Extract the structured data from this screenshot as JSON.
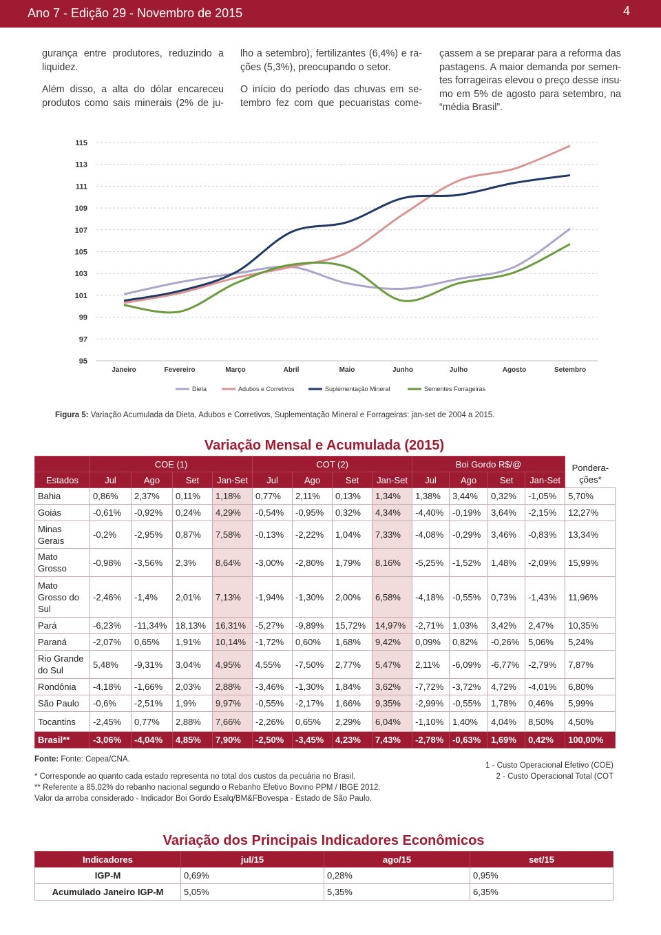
{
  "header": {
    "title": "Ano 7 - Edição 29 - Novembro de 2015",
    "page": "4"
  },
  "columns": [
    [
      [
        "gurança entre produtores, reduzindo a",
        "liquidez."
      ],
      [
        "Além disso, a alta do dólar encareceu",
        "produtos como sais minerais (2% de ju-"
      ]
    ],
    [
      [
        "lho a setembro), fertilizantes (6,4%) e ra-",
        "ções (5,3%), preocupando o setor."
      ],
      [
        "O início do período das chuvas em se-",
        "tembro fez com que pecuaristas come-"
      ]
    ],
    [
      [
        "çassem a se preparar para a reforma das",
        "pastagens. A maior demanda por semen-",
        "tes forrageiras elevou o preço desse insu-",
        "mo em 5% de agosto para setembro, na",
        "“média Brasil”."
      ]
    ]
  ],
  "chart_data": {
    "type": "line",
    "categories": [
      "Janeiro",
      "Fevereiro",
      "Março",
      "Abril",
      "Maio",
      "Junho",
      "Julho",
      "Agosto",
      "Setembro"
    ],
    "series": [
      {
        "name": "Dieta",
        "color": "#a9a5cc",
        "values": [
          101.1,
          102.2,
          103.0,
          103.6,
          102.1,
          101.6,
          102.5,
          103.6,
          107.1
        ]
      },
      {
        "name": "Adubos e Corretivos",
        "color": "#d99594",
        "values": [
          100.3,
          101.2,
          102.6,
          103.6,
          104.9,
          108.4,
          111.5,
          112.6,
          114.7
        ]
      },
      {
        "name": "Suplementação Mineral",
        "color": "#1f3864",
        "values": [
          100.5,
          101.4,
          103.1,
          106.8,
          107.7,
          109.9,
          110.2,
          111.3,
          112.0
        ]
      },
      {
        "name": "Sementes Forrageiras",
        "color": "#6b9a3f",
        "values": [
          100.1,
          99.5,
          102.1,
          103.8,
          103.6,
          100.5,
          102.1,
          103.1,
          105.7
        ]
      }
    ],
    "ylim": [
      95,
      115
    ],
    "yticks": [
      95,
      97,
      99,
      101,
      103,
      105,
      107,
      109,
      111,
      113,
      115
    ],
    "grid": true,
    "legend": "bottom"
  },
  "figure_caption": {
    "label": "Figura 5:",
    "text": "Variação Acumulada da Dieta, Adubos e Corretivos, Suplementação Mineral e Forrageiras: jan-set de 2004 a 2015."
  },
  "table": {
    "title": "Variação Mensal e Acumulada (2015)",
    "groups": [
      "COE (1)",
      "COT (2)",
      "Boi Gordo R$/@"
    ],
    "estados_label": "Estados",
    "periods": [
      "Jul",
      "Ago",
      "Set",
      "Jan-Set",
      "Jul",
      "Ago",
      "Set",
      "Jan-Set",
      "Jul",
      "Ago",
      "Set",
      "Jan-Set"
    ],
    "weight_label": [
      "Pondera-",
      "ções*"
    ],
    "rows": [
      [
        "Bahia",
        "0,86%",
        "2,37%",
        "0,11%",
        "1,18%",
        "0,77%",
        "2,11%",
        "0,13%",
        "1,34%",
        "1,38%",
        "3,44%",
        "0,32%",
        "-1,05%",
        "5,70%"
      ],
      [
        "Goiás",
        "-0,61%",
        "-0,92%",
        "0,24%",
        "4,29%",
        "-0,54%",
        "-0,95%",
        "0,32%",
        "4,34%",
        "-4,40%",
        "-0,19%",
        "3,64%",
        "-2,15%",
        "12,27%"
      ],
      [
        "Minas Gerais",
        "-0,2%",
        "-2,95%",
        "0,87%",
        "7,58%",
        "-0,13%",
        "-2,22%",
        "1,04%",
        "7,33%",
        "-4,08%",
        "-0,29%",
        "3,46%",
        "-0,83%",
        "13,34%"
      ],
      [
        "Mato Grosso",
        "-0,98%",
        "-3,56%",
        "2,3%",
        "8,64%",
        "-3,00%",
        "-2,80%",
        "1,79%",
        "8,16%",
        "-5,25%",
        "-1,52%",
        "1,48%",
        "-2,09%",
        "15,99%"
      ],
      [
        "Mato Grosso do Sul",
        "-2,46%",
        "-1,4%",
        "2,01%",
        "7,13%",
        "-1,94%",
        "-1,30%",
        "2,00%",
        "6,58%",
        "-4,18%",
        "-0,55%",
        "0,73%",
        "-1,43%",
        "11,96%"
      ],
      [
        "Pará",
        "-6,23%",
        "-11,34%",
        "18,13%",
        "16,31%",
        "-5,27%",
        "-9,89%",
        "15,72%",
        "14,97%",
        "-2,71%",
        "1,03%",
        "3,42%",
        "2,47%",
        "10,35%"
      ],
      [
        "Paraná",
        "-2,07%",
        "0,65%",
        "1,91%",
        "10,14%",
        "-1,72%",
        "0,60%",
        "1,68%",
        "9,42%",
        "0,09%",
        "0,82%",
        "-0,26%",
        "5,06%",
        "5,24%"
      ],
      [
        "Rio Grande do Sul",
        "5,48%",
        "-9,31%",
        "3,04%",
        "4,95%",
        "4,55%",
        "-7,50%",
        "2,77%",
        "5,47%",
        "2,11%",
        "-6,09%",
        "-6,77%",
        "-2,79%",
        "7,87%"
      ],
      [
        "Rondônia",
        "-4,18%",
        "-1,66%",
        "2,03%",
        "2,88%",
        "-3,46%",
        "-1,30%",
        "1,84%",
        "3,62%",
        "-7,72%",
        "-3,72%",
        "4,72%",
        "-4,01%",
        "6,80%"
      ],
      [
        "São Paulo",
        "-0,6%",
        "-2,51%",
        "1,9%",
        "9,97%",
        "-0,55%",
        "-2,17%",
        "1,66%",
        "9,35%",
        "-2,99%",
        "-0,55%",
        "1,78%",
        "0,46%",
        "5,99%"
      ],
      [
        "Tocantins",
        "-2,45%",
        "0,77%",
        "2,88%",
        "7,66%",
        "-2,26%",
        "0,65%",
        "2,29%",
        "6,04%",
        "-1,10%",
        "1,40%",
        "4,04%",
        "8,50%",
        "4,50%"
      ],
      [
        "Brasil**",
        "-3,06%",
        "-4,04%",
        "4,85%",
        "7,90%",
        "-2,50%",
        "-3,45%",
        "4,23%",
        "7,43%",
        "-2,78%",
        "-0,63%",
        "1,69%",
        "0,42%",
        "100,00%"
      ]
    ]
  },
  "footnotes": {
    "source_label": "Fonte:",
    "source": "Fonte: Cepea/CNA.",
    "notes": [
      "* Corresponde ao quanto cada estado representa no total dos custos da pecuária no Brasil.",
      "** Referente a 85,02% do rebanho nacional segundo o Rebanho Efetivo Bovino PPM / IBGE 2012.",
      "Valor da arroba considerado - Indicador Boi Gordo Esalq/BM&FBovespa - Estado de São Paulo."
    ],
    "legend_notes": [
      "1 - Custo Operacional Efetivo (COE)",
      "2 - Custo Operacional Total (COT"
    ]
  },
  "table2": {
    "title": "Variação dos Principais Indicadores Econômicos",
    "headers": [
      "Indicadores",
      "jul/15",
      "ago/15",
      "set/15"
    ],
    "rows": [
      [
        "IGP-M",
        "0,69%",
        "0,28%",
        "0,95%"
      ],
      [
        "Acumulado Janeiro IGP-M",
        "5,05%",
        "5,35%",
        "6,35%"
      ]
    ]
  }
}
